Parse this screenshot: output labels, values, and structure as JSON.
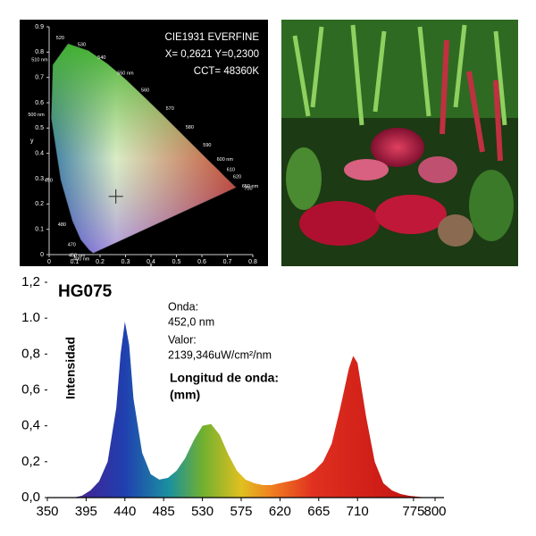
{
  "chart_data": [
    {
      "type": "area",
      "title": "HG075",
      "ylabel": "Intensidad",
      "annotations": [
        "Onda:",
        "452,0 nm",
        "Valor:",
        "2139,346uW/cm²/nm"
      ],
      "xlabel": "Longitud de onda:",
      "xunit": "(mm)",
      "x": [
        380,
        390,
        400,
        410,
        420,
        430,
        435,
        440,
        445,
        450,
        460,
        470,
        480,
        490,
        500,
        510,
        520,
        530,
        540,
        550,
        560,
        570,
        580,
        590,
        600,
        610,
        620,
        630,
        640,
        650,
        660,
        670,
        680,
        690,
        700,
        705,
        710,
        720,
        730,
        740,
        750,
        760,
        770,
        780,
        790
      ],
      "values": [
        0,
        0.01,
        0.04,
        0.09,
        0.2,
        0.5,
        0.8,
        0.98,
        0.85,
        0.55,
        0.25,
        0.13,
        0.1,
        0.11,
        0.15,
        0.22,
        0.32,
        0.4,
        0.41,
        0.35,
        0.24,
        0.15,
        0.1,
        0.08,
        0.07,
        0.07,
        0.08,
        0.09,
        0.1,
        0.12,
        0.15,
        0.2,
        0.3,
        0.5,
        0.72,
        0.79,
        0.75,
        0.45,
        0.2,
        0.08,
        0.04,
        0.02,
        0.01,
        0.005,
        0
      ],
      "xlim": [
        350,
        800
      ],
      "xticks": [
        350,
        395,
        440,
        485,
        530,
        575,
        620,
        665,
        710,
        775,
        800
      ],
      "ylim": [
        0,
        1.2
      ],
      "yticks": [
        {
          "value": 0,
          "label": "0,0"
        },
        {
          "value": 0.2,
          "label": "0,2"
        },
        {
          "value": 0.4,
          "label": "0,4"
        },
        {
          "value": 0.6,
          "label": "0,6"
        },
        {
          "value": 0.8,
          "label": "0,8"
        },
        {
          "value": 1.0,
          "label": "1.0"
        },
        {
          "value": 1.2,
          "label": "1,2"
        }
      ]
    },
    {
      "type": "chromaticity",
      "annotations": [
        "CIE1931 EVERFINE",
        "X= 0,2621 Y=0,2300",
        "CCT= 48360K"
      ],
      "xlabel": "x",
      "ylabel": "y",
      "xlim": [
        0,
        0.8
      ],
      "xticks": [
        0,
        0.1,
        0.2,
        0.3,
        0.4,
        0.5,
        0.6,
        0.7,
        0.8
      ],
      "ylim": [
        0,
        0.9
      ],
      "yticks": [
        0,
        0.1,
        0.2,
        0.3,
        0.4,
        0.5,
        0.6,
        0.7,
        0.8,
        0.9
      ],
      "locus": {
        "labels": [
          "400 nm",
          "450 nm",
          "470",
          "480",
          "490",
          "500 nm",
          "510 nm",
          "520",
          "530",
          "540",
          "550 nm",
          "560",
          "570",
          "580",
          "590",
          "600 nm",
          "610",
          "620",
          "650 nm",
          "700"
        ],
        "x": [
          0.173,
          0.157,
          0.124,
          0.091,
          0.045,
          0.008,
          0.014,
          0.074,
          0.155,
          0.23,
          0.302,
          0.373,
          0.444,
          0.512,
          0.575,
          0.627,
          0.666,
          0.691,
          0.726,
          0.735
        ],
        "y": [
          0.005,
          0.018,
          0.058,
          0.133,
          0.295,
          0.538,
          0.75,
          0.834,
          0.806,
          0.754,
          0.692,
          0.624,
          0.555,
          0.487,
          0.424,
          0.372,
          0.334,
          0.308,
          0.274,
          0.265
        ]
      },
      "point": {
        "x": 0.2621,
        "y": 0.23
      }
    }
  ]
}
